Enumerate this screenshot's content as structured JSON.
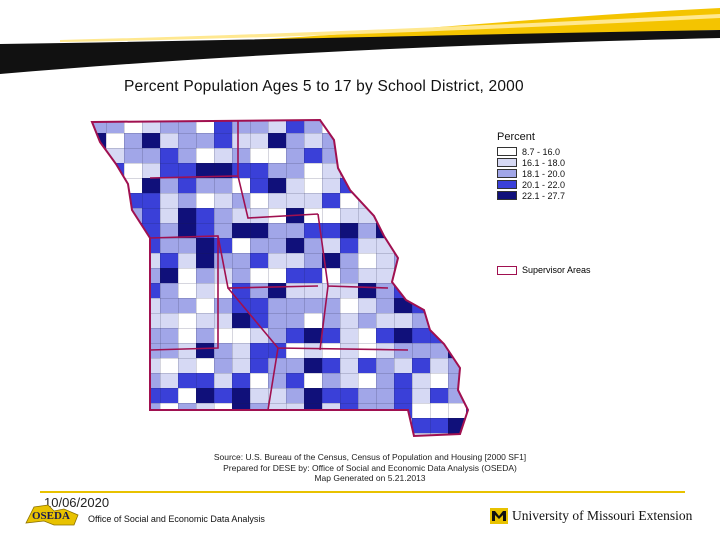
{
  "map": {
    "title": "Percent Population Ages 5 to 17 by School District, 2000",
    "legend": {
      "title": "Percent",
      "classes": [
        {
          "label": "8.7 - 16.0",
          "color": "#ffffff"
        },
        {
          "label": "16.1 - 18.0",
          "color": "#d6d9f4"
        },
        {
          "label": "18.1 - 20.0",
          "color": "#a1a6e8"
        },
        {
          "label": "20.1 - 22.0",
          "color": "#3a40d8"
        },
        {
          "label": "22.1 - 27.7",
          "color": "#10107a"
        }
      ],
      "boundary": {
        "label": "Supervisor Areas",
        "color": "#a01050"
      }
    },
    "source_lines": [
      "Source: U.S. Bureau of the Census, Census of Population and Housing [2000 SF1]",
      "Prepared for DESE by: Office of Social and Economic Data Analysis (OSEDA)",
      "Map Generated on 5.21.2013"
    ]
  },
  "footer": {
    "date": "10/06/2020",
    "logo_text": "OSEDA",
    "office": "Office of Social and Economic Data Analysis",
    "university": "University of Missouri Extension",
    "accent_color": "#e8c200"
  }
}
